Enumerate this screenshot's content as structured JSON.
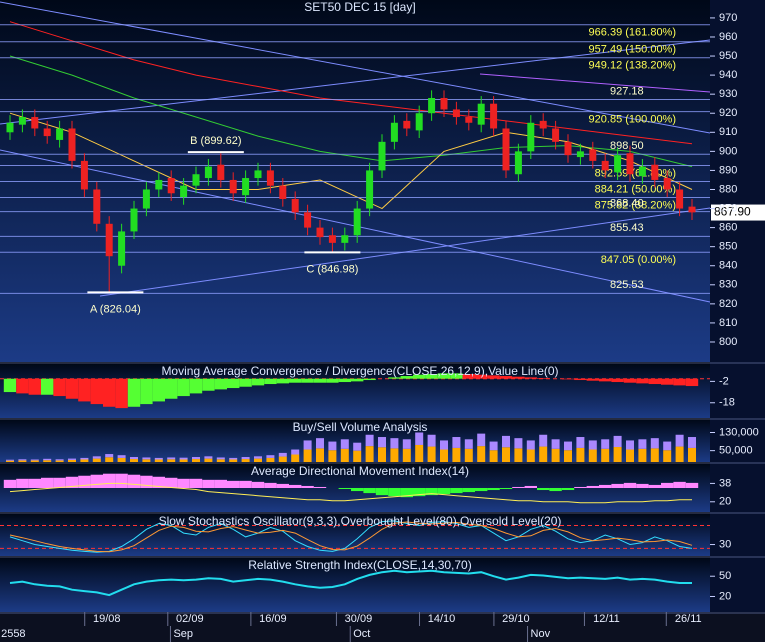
{
  "chart_data": [
    {
      "type": "candlestick",
      "title": "SET50 DEC 15   [day]",
      "open": [
        910,
        914,
        918,
        912,
        906,
        912,
        895,
        880,
        862,
        840,
        858,
        870,
        880,
        886,
        876,
        882,
        886,
        893,
        885,
        877,
        886,
        890,
        882,
        875,
        868,
        860,
        856,
        852,
        856,
        870,
        890,
        905,
        916,
        911,
        920,
        928,
        922,
        918,
        914,
        925,
        912,
        888,
        900,
        916,
        912,
        905,
        897,
        901,
        895,
        889,
        899,
        887,
        893,
        886,
        880,
        871
      ],
      "high": [
        919,
        922,
        922,
        916,
        916,
        916,
        899,
        884,
        866,
        862,
        874,
        884,
        889,
        890,
        886,
        892,
        896,
        899,
        889,
        890,
        894,
        894,
        886,
        879,
        872,
        864,
        860,
        860,
        874,
        894,
        909,
        919,
        920,
        924,
        932,
        932,
        926,
        922,
        929,
        929,
        916,
        904,
        919,
        920,
        916,
        909,
        904,
        905,
        899,
        902,
        903,
        896,
        897,
        890,
        884,
        875
      ],
      "low": [
        906,
        910,
        908,
        904,
        902,
        891,
        876,
        858,
        826,
        836,
        854,
        866,
        876,
        874,
        872,
        878,
        882,
        881,
        874,
        873,
        882,
        878,
        871,
        864,
        856,
        851,
        847,
        848,
        852,
        866,
        886,
        901,
        908,
        907,
        916,
        918,
        914,
        911,
        910,
        908,
        886,
        884,
        896,
        908,
        901,
        894,
        893,
        891,
        886,
        885,
        884,
        883,
        881,
        876,
        866,
        864
      ],
      "close": [
        915,
        918,
        912,
        908,
        912,
        895,
        880,
        862,
        845,
        858,
        870,
        880,
        885,
        878,
        882,
        888,
        892,
        885,
        878,
        886,
        890,
        882,
        875,
        868,
        860,
        855,
        852,
        856,
        870,
        890,
        905,
        915,
        912,
        920,
        928,
        922,
        918,
        915,
        925,
        912,
        890,
        900,
        915,
        912,
        905,
        898,
        900,
        895,
        890,
        898,
        888,
        892,
        885,
        880,
        870,
        868
      ],
      "up_color": "#22dd22",
      "down_color": "#ee2222",
      "ylim": [
        789.5,
        979.4
      ],
      "yticks": [
        800,
        810,
        820,
        830,
        840,
        850,
        860,
        870,
        880,
        890,
        900,
        910,
        920,
        930,
        940,
        950,
        960,
        970
      ],
      "last_price": {
        "value": 867.9,
        "label": "867.90"
      },
      "fib_color": "#ffff55",
      "level_text_color": "#ffffcc",
      "level_line_color": "#8fa0ff",
      "fib_levels": [
        {
          "value": 966.39,
          "label": "966.39 (161.80%)"
        },
        {
          "value": 957.49,
          "label": "957.49 (150.00%)"
        },
        {
          "value": 949.12,
          "label": "949.12 (138.20%)"
        },
        {
          "value": 920.85,
          "label": "920.85 (100.00%)"
        },
        {
          "value": 892.59,
          "label": "892.59 (61.80%)"
        },
        {
          "value": 884.21,
          "label": "884.21 (50.00%)"
        },
        {
          "value": 875.82,
          "label": "875.82 (38.20%)"
        },
        {
          "value": 847.05,
          "label": "847.05 (0.00%)"
        }
      ],
      "price_levels": [
        927.18,
        {
          "value": 898.5,
          "label": "898.50"
        },
        {
          "value": 868.4,
          "label": "868.40"
        },
        855.43,
        825.53
      ],
      "annotations": [
        {
          "label": "A (826.04)",
          "value": 826.04,
          "x": 8.5,
          "side": "below"
        },
        {
          "label": "B (899.62)",
          "value": 899.62,
          "x": 16.6,
          "side": "above"
        },
        {
          "label": "C (846.98)",
          "value": 846.98,
          "x": 26,
          "side": "below"
        }
      ],
      "moving_averages": [
        {
          "color": "#ff2222",
          "x": [
            0,
            5,
            10,
            15,
            20,
            25,
            30,
            35,
            40,
            45,
            50,
            55
          ],
          "values": [
            968,
            958,
            948,
            940,
            934,
            928,
            924,
            920,
            916,
            912,
            908,
            904
          ]
        },
        {
          "color": "#33cc33",
          "x": [
            0,
            5,
            10,
            15,
            20,
            25,
            30,
            35,
            40,
            45,
            50,
            55
          ],
          "values": [
            950,
            940,
            928,
            918,
            908,
            900,
            895,
            898,
            902,
            903,
            900,
            892
          ]
        },
        {
          "color": "#ffcc44",
          "x": [
            0,
            5,
            10,
            15,
            20,
            25,
            30,
            35,
            40,
            45,
            50,
            55
          ],
          "values": [
            920,
            910,
            895,
            880,
            880,
            885,
            870,
            900,
            910,
            905,
            895,
            880
          ]
        }
      ]
    },
    {
      "type": "histogram",
      "title": "Moving Average Convergence / Divergence(CLOSE,26,12,9),Value Line(0)",
      "values": [
        -10,
        -11,
        -12,
        -12,
        -13,
        -15,
        -17,
        -19,
        -21,
        -22,
        -21,
        -19,
        -17,
        -15,
        -13,
        -11,
        -9,
        -8,
        -7,
        -6,
        -5,
        -4,
        -3.5,
        -3,
        -3,
        -3,
        -3,
        -2.5,
        -2,
        -1,
        0,
        1,
        2,
        3,
        3.5,
        4,
        4,
        3.5,
        3,
        2.5,
        2,
        1.5,
        1,
        0.5,
        0,
        -0.5,
        -1,
        -1.5,
        -2,
        -2.5,
        -3,
        -3.5,
        -4,
        -4.5,
        -5,
        -5.5
      ],
      "rise_color": "#55ff33",
      "fall_color": "#ff2222",
      "level_color": "#ff3333",
      "ylim": [
        -29.4,
        11
      ],
      "yticks": [
        -2,
        -18
      ],
      "levels": [
        0
      ]
    },
    {
      "type": "stacked_bar",
      "title": "Buy/Sell Volume Analysis",
      "series": [
        {
          "color": "#ffaa00",
          "values": [
            6000,
            7000,
            7000,
            8000,
            7000,
            9000,
            11000,
            15000,
            21000,
            18000,
            13000,
            12000,
            11000,
            12000,
            11000,
            13000,
            15000,
            12000,
            11000,
            13000,
            15000,
            18000,
            24000,
            33000,
            55000,
            60000,
            52000,
            58000,
            50000,
            70000,
            65000,
            60000,
            58000,
            75000,
            68000,
            55000,
            62000,
            58000,
            70000,
            52000,
            65000,
            60000,
            55000,
            68000,
            58000,
            52000,
            62000,
            55000,
            58000,
            66000,
            55000,
            58000,
            60000,
            52000,
            68000,
            62000
          ]
        },
        {
          "color": "#aa88ff",
          "values": [
            4000,
            5000,
            4000,
            6000,
            5000,
            6000,
            7000,
            10000,
            14000,
            12000,
            9000,
            8000,
            7000,
            8000,
            8000,
            9000,
            10000,
            8000,
            7000,
            9000,
            10000,
            12000,
            16000,
            22000,
            40000,
            45000,
            38000,
            42000,
            35000,
            50000,
            45000,
            45000,
            42000,
            55000,
            52000,
            40000,
            48000,
            42000,
            55000,
            38000,
            50000,
            45000,
            40000,
            52000,
            42000,
            38000,
            48000,
            40000,
            42000,
            49000,
            40000,
            42000,
            45000,
            38000,
            52000,
            48000
          ]
        }
      ],
      "ylim": [
        0,
        185000
      ],
      "yticks": [
        {
          "value": 50000,
          "label": "50,000"
        },
        {
          "value": 130000,
          "label": "130,000"
        }
      ]
    },
    {
      "type": "adx",
      "title": "Average Directional Movement Index(14)",
      "values": [
        30,
        31,
        32,
        33,
        34,
        35,
        36,
        37,
        38,
        38,
        37,
        36,
        35,
        34,
        33,
        32,
        30,
        29,
        28,
        27,
        26,
        25,
        24,
        23,
        22,
        22,
        21,
        21,
        22,
        23,
        24,
        25,
        26,
        27,
        28,
        27,
        26,
        25,
        24,
        23,
        22,
        21,
        21,
        20,
        20,
        20,
        19,
        19,
        19,
        20,
        20,
        20,
        21,
        21,
        22,
        22
      ],
      "di_difference": [
        8,
        9,
        9,
        10,
        10,
        11,
        12,
        13,
        14,
        14,
        13,
        12,
        11,
        10,
        9,
        9,
        8,
        8,
        7,
        7,
        6,
        5,
        4,
        3,
        2,
        1,
        0,
        -1,
        -3,
        -5,
        -7,
        -8,
        -9,
        -8,
        -7,
        -6,
        -5,
        -4,
        -3,
        -2,
        -1,
        1,
        2,
        -2,
        -3,
        -2,
        1,
        2,
        3,
        4,
        5,
        4,
        3,
        5,
        6,
        5
      ],
      "color": "#ffee55",
      "positive_color": "#ff88ff",
      "negative_color": "#33ff33",
      "ylim": [
        10,
        57
      ],
      "yticks": [
        20,
        38
      ]
    },
    {
      "type": "line",
      "title": "Slow Stochastics Oscillator(9,3,3),Overbought Level(80),Oversold Level(20)",
      "series": [
        {
          "color": "#33ddff",
          "values": [
            50,
            40,
            30,
            25,
            20,
            15,
            12,
            10,
            12,
            25,
            45,
            70,
            85,
            80,
            60,
            55,
            75,
            85,
            70,
            50,
            60,
            75,
            65,
            40,
            25,
            15,
            12,
            20,
            45,
            75,
            90,
            92,
            85,
            80,
            88,
            90,
            85,
            75,
            80,
            60,
            40,
            50,
            70,
            80,
            65,
            45,
            35,
            40,
            55,
            45,
            30,
            35,
            50,
            40,
            25,
            20
          ]
        },
        {
          "color": "#ff9933",
          "values": [
            55,
            48,
            40,
            32,
            25,
            20,
            16,
            12,
            11,
            16,
            27,
            47,
            67,
            78,
            75,
            65,
            63,
            72,
            77,
            68,
            60,
            62,
            67,
            60,
            43,
            27,
            17,
            16,
            26,
            47,
            70,
            86,
            89,
            86,
            84,
            86,
            88,
            83,
            80,
            72,
            60,
            50,
            53,
            67,
            72,
            63,
            48,
            40,
            43,
            47,
            43,
            37,
            38,
            42,
            38,
            28
          ]
        }
      ],
      "ylim": [
        0,
        110
      ],
      "yticks": [
        30
      ],
      "levels": [
        80,
        20
      ],
      "level_color": "#ff3333"
    },
    {
      "type": "line",
      "title": "Relative Strength Index(CLOSE,14,30,70)",
      "series": [
        {
          "color": "#22ddee",
          "values": [
            40,
            42,
            38,
            36,
            35,
            30,
            28,
            26,
            22,
            30,
            38,
            42,
            44,
            45,
            44,
            45,
            47,
            46,
            42,
            44,
            46,
            45,
            42,
            38,
            35,
            33,
            34,
            38,
            46,
            52,
            56,
            58,
            56,
            57,
            58,
            56,
            55,
            54,
            56,
            50,
            45,
            48,
            52,
            51,
            49,
            47,
            48,
            47,
            46,
            48,
            45,
            46,
            45,
            42,
            40,
            40
          ]
        }
      ],
      "ylim": [
        -3,
        77
      ],
      "yticks": [
        20,
        50
      ],
      "xticks": [
        {
          "value": 7.8,
          "label": "19/08"
        },
        {
          "value": 14.5,
          "label": "02/09"
        },
        {
          "value": 21.2,
          "label": "16/09"
        },
        {
          "value": 28.1,
          "label": "30/09"
        },
        {
          "value": 34.8,
          "label": "14/10"
        },
        {
          "value": 40.8,
          "label": "29/10"
        },
        {
          "value": 48.1,
          "label": "12/11"
        },
        {
          "value": 54.7,
          "label": "26/11"
        }
      ],
      "month_ticks": [
        {
          "value": -0.8,
          "label": "2558"
        },
        {
          "value": 13.1,
          "label": "Sep"
        },
        {
          "value": 27.6,
          "label": "Oct"
        },
        {
          "value": 41.9,
          "label": "Nov"
        }
      ]
    }
  ]
}
